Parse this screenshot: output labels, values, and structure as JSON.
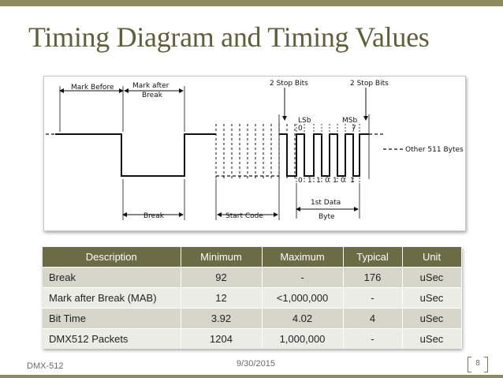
{
  "slide": {
    "title": "Timing Diagram and Timing Values",
    "footer_left": "DMX-512",
    "footer_center": "9/30/2015",
    "page_number": "8"
  },
  "diagram": {
    "labels": {
      "mark_before": "Mark Before",
      "mark_after_line1": "Mark after",
      "mark_after_line2": "Break",
      "stop_bits_1": "2 Stop Bits",
      "stop_bits_2": "2 Stop Bits",
      "lsb": "LSb",
      "lsb_bit": "0",
      "msb": "MSb",
      "msb_bit": "7",
      "other_bytes": "Other 511 Bytes",
      "break": "Break",
      "start_code": "Start Code",
      "first_data_line1": "1st Data",
      "first_data_line2": "Byte",
      "bit_values": [
        "0",
        "1",
        "1",
        "0",
        "1",
        "0",
        "1"
      ]
    }
  },
  "table": {
    "headers": [
      "Description",
      "Minimum",
      "Maximum",
      "Typical",
      "Unit"
    ],
    "rows": [
      [
        "Break",
        "92",
        "-",
        "176",
        "uSec"
      ],
      [
        "Mark after Break (MAB)",
        "12",
        "<1,000,000",
        "-",
        "uSec"
      ],
      [
        "Bit Time",
        "3.92",
        "4.02",
        "4",
        "uSec"
      ],
      [
        "DMX512 Packets",
        "1204",
        "1,000,000",
        "-",
        "uSec"
      ]
    ]
  }
}
